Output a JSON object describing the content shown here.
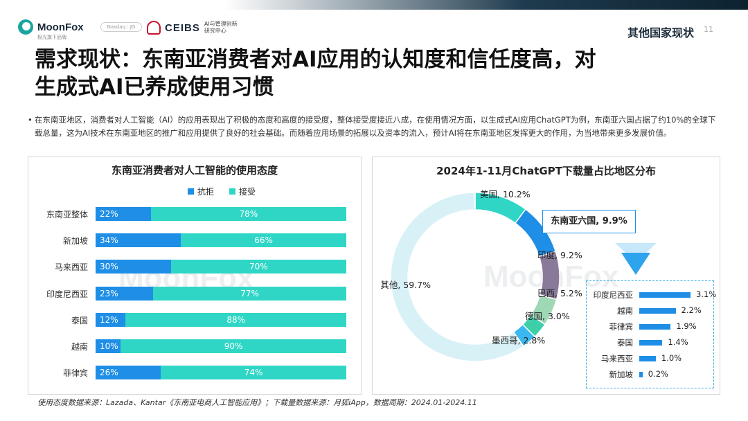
{
  "header": {
    "logo_text": "MoonFox",
    "logo_sub": "极光旗下品牌",
    "pill_text": "Nasdaq : JG",
    "ceibs_text": "CEIBS",
    "ceibs_sub_line1": "AI与管理创新",
    "ceibs_sub_line2": "研究中心",
    "section_tag": "其他国家现状",
    "page_number": "11"
  },
  "title": {
    "line1": "需求现状：东南亚消费者对AI应用的认知度和信任度高，对",
    "line2": "生成式AI已养成使用习惯"
  },
  "bullet": {
    "marker": "•",
    "text": "在东南亚地区，消费者对人工智能（AI）的应用表现出了积极的态度和高度的接受度，整体接受度接近八成，在使用情况方面，以生成式AI应用ChatGPT为例，东南亚六国占据了约10%的全球下载总量，这为AI技术在东南亚地区的推广和应用提供了良好的社会基础。而随着应用场景的拓展以及资本的流入，预计AI将在东南亚地区发挥更大的作用，为当地带来更多发展价值。"
  },
  "watermark": "MoonFox",
  "colors": {
    "reject": "#1e8ee6",
    "accept": "#2fd6c6",
    "donut": [
      "#d8f1f6",
      "#2fd6c6",
      "#1e8ee6",
      "#8a7a9a",
      "#9fd8b4",
      "#3ecfa9",
      "#3ab8f0"
    ]
  },
  "chart_data": [
    {
      "type": "bar",
      "stacked": true,
      "orientation": "horizontal",
      "title": "东南亚消费者对人工智能的使用态度",
      "categories": [
        "东南亚整体",
        "新加坡",
        "马来西亚",
        "印度尼西亚",
        "泰国",
        "越南",
        "菲律宾"
      ],
      "series": [
        {
          "name": "抗拒",
          "values": [
            22,
            34,
            30,
            23,
            12,
            10,
            26
          ],
          "labels": [
            "22%",
            "34%",
            "30%",
            "23%",
            "12%",
            "10%",
            "26%"
          ]
        },
        {
          "name": "接受",
          "values": [
            78,
            66,
            70,
            77,
            88,
            90,
            74
          ],
          "labels": [
            "78%",
            "66%",
            "70%",
            "77%",
            "88%",
            "90%",
            "74%"
          ]
        }
      ],
      "legend": "top"
    },
    {
      "type": "pie",
      "donut": true,
      "title": "2024年1-11月ChatGPT下载量占比地区分布",
      "slices": [
        {
          "label": "其他",
          "value": 59.7,
          "text": "其他, 59.7%"
        },
        {
          "label": "美国",
          "value": 10.2,
          "text": "美国, 10.2%"
        },
        {
          "label": "东南亚六国",
          "value": 9.9,
          "text": "东南亚六国, 9.9%"
        },
        {
          "label": "印度",
          "value": 9.2,
          "text": "印度, 9.2%"
        },
        {
          "label": "巴西",
          "value": 5.2,
          "text": "巴西, 5.2%"
        },
        {
          "label": "德国",
          "value": 3.0,
          "text": "德国, 3.0%"
        },
        {
          "label": "墨西哥",
          "value": 2.8,
          "text": "墨西哥, 2.8%"
        }
      ]
    },
    {
      "type": "bar",
      "orientation": "horizontal",
      "categories": [
        "印度尼西亚",
        "越南",
        "菲律宾",
        "泰国",
        "马来西亚",
        "新加坡"
      ],
      "values": [
        3.1,
        2.2,
        1.9,
        1.4,
        1.0,
        0.2
      ],
      "labels": [
        "3.1%",
        "2.2%",
        "1.9%",
        "1.4%",
        "1.0%",
        "0.2%"
      ]
    }
  ],
  "footer": "使用态度数据来源：Lazada、Kantar《东南亚电商人工智能应用》；下载量数据来源：月狐iApp，数据周期：2024.01-2024.11"
}
